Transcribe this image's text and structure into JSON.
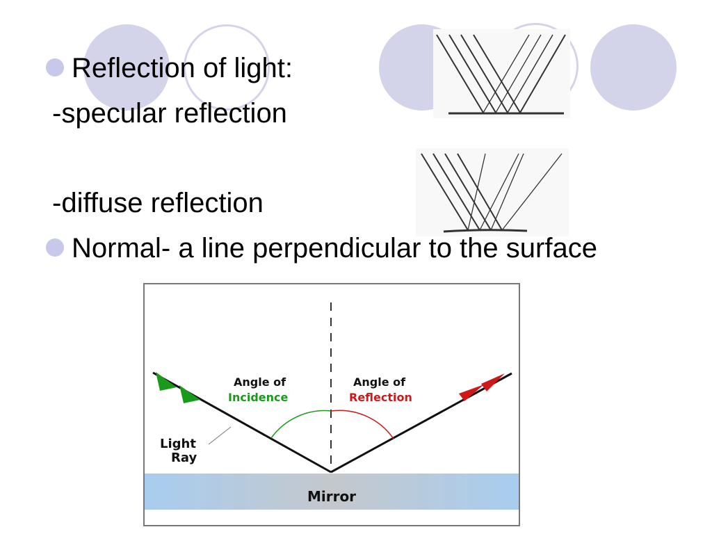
{
  "slide": {
    "bullets": [
      {
        "text": "Reflection of light:"
      },
      {
        "text": "Normal- a line perpendicular to the surface"
      }
    ],
    "sub_items": [
      "-specular reflection",
      "-diffuse reflection"
    ]
  },
  "diagram": {
    "angle_incidence_line1": "Angle of",
    "angle_incidence_line2": "Incidence",
    "angle_reflection_line1": "Angle of",
    "angle_reflection_line2": "Reflection",
    "light_ray_line1": "Light",
    "light_ray_line2": "Ray",
    "mirror_label": "Mirror",
    "colors": {
      "incidence": "#1a9a1a",
      "reflection": "#d01818",
      "mirror": "#a8cdf0",
      "decor_circle": "#d3d3ea"
    }
  }
}
